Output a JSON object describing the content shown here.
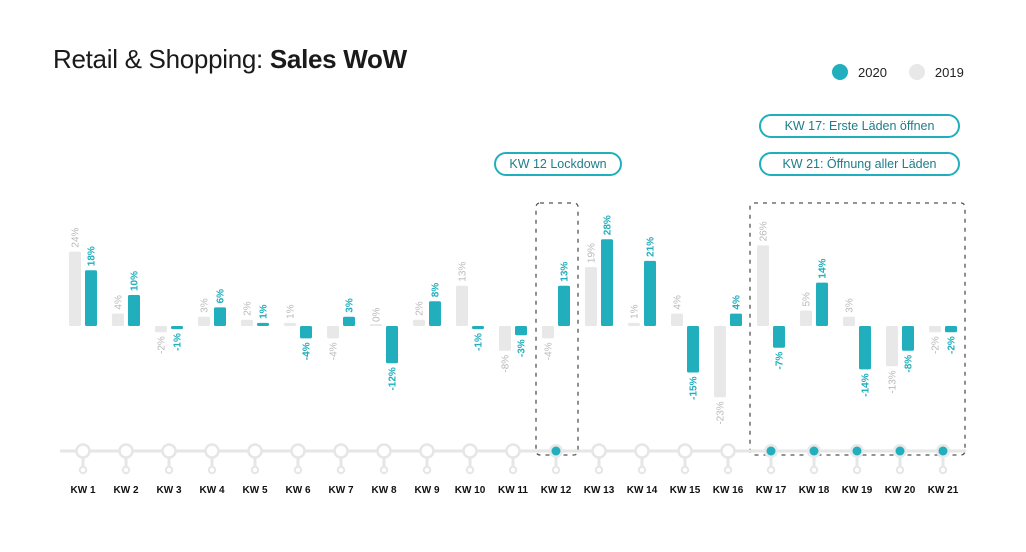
{
  "title": {
    "regular": "Retail & Shopping: ",
    "bold": "Sales WoW"
  },
  "legend": [
    {
      "label": "2020",
      "color": "#21aebd"
    },
    {
      "label": "2019",
      "color": "#e8e8e8"
    }
  ],
  "annotations": [
    {
      "label": "KW 12 Lockdown",
      "weeks": [
        "KW 12"
      ]
    },
    {
      "label": "KW 17: Erste Läden öffnen",
      "weeks": [
        "KW 17"
      ]
    },
    {
      "label": "KW 21: Öffnung aller Läden",
      "weeks": [
        "KW 21"
      ]
    }
  ],
  "colors": {
    "s2020": "#21aebd",
    "s2019": "#e8e8e8",
    "label2019": "#b9b9b9",
    "timeline": "#e6e6e6"
  },
  "chart_data": {
    "type": "bar",
    "title": "Retail & Shopping: Sales WoW",
    "xlabel": "",
    "ylabel": "",
    "ylim": [
      -25,
      30
    ],
    "grid": false,
    "legend_position": "top-right",
    "categories": [
      "KW 1",
      "KW 2",
      "KW 3",
      "KW 4",
      "KW 5",
      "KW 6",
      "KW 7",
      "KW 8",
      "KW 9",
      "KW 10",
      "KW 11",
      "KW 12",
      "KW 13",
      "KW 14",
      "KW 15",
      "KW 16",
      "KW 17",
      "KW 18",
      "KW 19",
      "KW 20",
      "KW 21"
    ],
    "highlighted_weeks": [
      "KW 12",
      "KW 17",
      "KW 18",
      "KW 19",
      "KW 20",
      "KW 21"
    ],
    "series": [
      {
        "name": "2019",
        "values": [
          24,
          4,
          -2,
          3,
          2,
          1,
          -4,
          0,
          2,
          13,
          -8,
          -4,
          19,
          1,
          4,
          -23,
          26,
          5,
          3,
          -13,
          -2
        ],
        "labels": [
          "24%",
          "4%",
          "-2%",
          "3%",
          "2%",
          "1%",
          "-4%",
          "0%",
          "2%",
          "13%",
          "-8%",
          "-4%",
          "19%",
          "1%",
          "4%",
          "-23%",
          "26%",
          "5%",
          "3%",
          "-13%",
          "-2%"
        ]
      },
      {
        "name": "2020",
        "values": [
          18,
          10,
          -1,
          6,
          1,
          -4,
          3,
          -12,
          8,
          -1,
          -3,
          13,
          28,
          21,
          -15,
          4,
          -7,
          14,
          -14,
          -8,
          -2
        ],
        "labels": [
          "18%",
          "10%",
          "-1%",
          "6%",
          "1%",
          "-4%",
          "3%",
          "-12%",
          "8%",
          "-1%",
          "-3%",
          "13%",
          "28%",
          "21%",
          "-15%",
          "4%",
          "-7%",
          "14%",
          "-14%",
          "-8%",
          "-2%"
        ]
      }
    ]
  }
}
